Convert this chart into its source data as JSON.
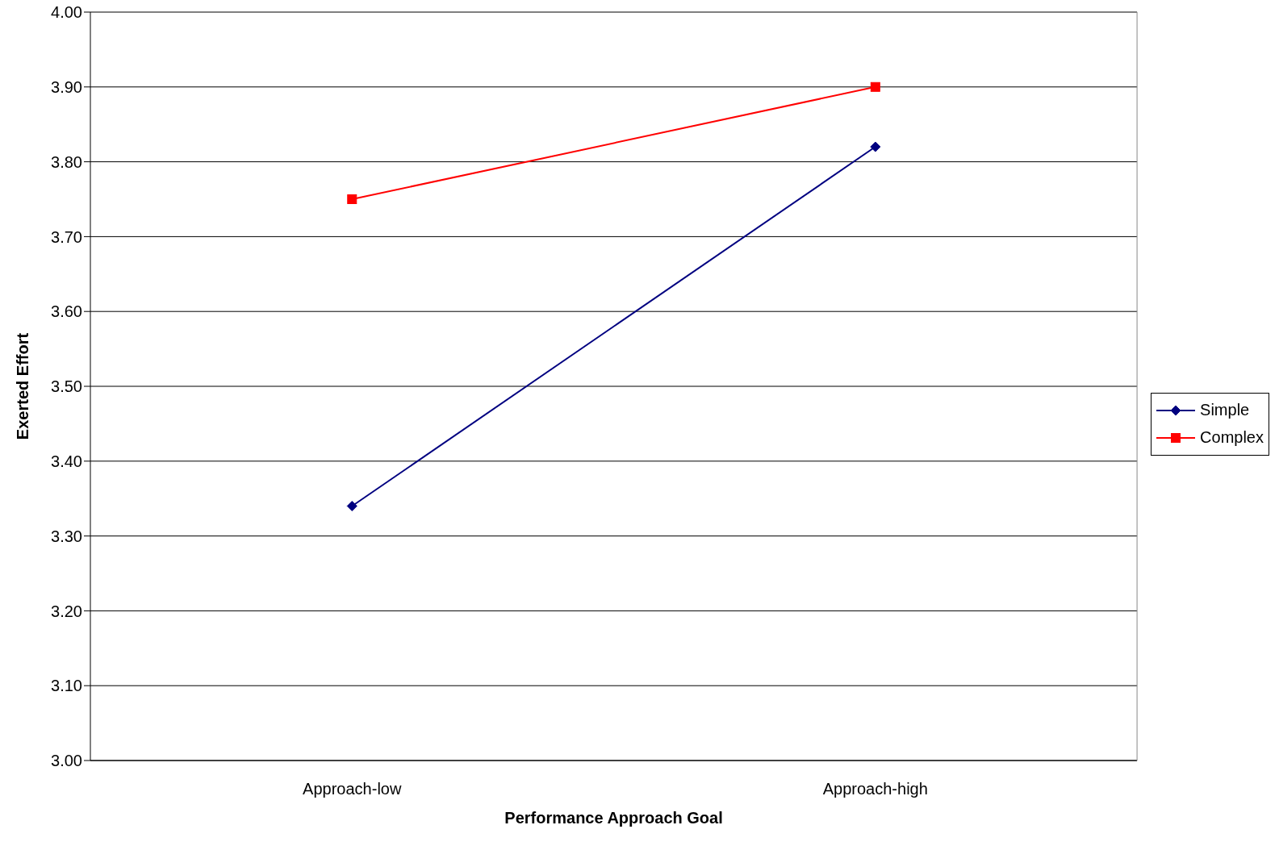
{
  "chart_data": {
    "type": "line",
    "xlabel": "Performance Approach Goal",
    "ylabel": "Exerted Effort",
    "categories": [
      "Approach-low",
      "Approach-high"
    ],
    "series": [
      {
        "name": "Simple",
        "color": "#000080",
        "values": [
          3.34,
          3.82
        ],
        "marker": "diamond"
      },
      {
        "name": "Complex",
        "color": "#ff0000",
        "values": [
          3.75,
          3.9
        ],
        "marker": "square"
      }
    ],
    "ylim": [
      3,
      4
    ],
    "yticks": [
      {
        "value": 3,
        "label": "3.00"
      },
      {
        "value": 3.1,
        "label": "3.10"
      },
      {
        "value": 3.2,
        "label": "3.20"
      },
      {
        "value": 3.3,
        "label": "3.30"
      },
      {
        "value": 3.4,
        "label": "3.40"
      },
      {
        "value": 3.5,
        "label": "3.50"
      },
      {
        "value": 3.6,
        "label": "3.60"
      },
      {
        "value": 3.7,
        "label": "3.70"
      },
      {
        "value": 3.8,
        "label": "3.80"
      },
      {
        "value": 3.9,
        "label": "3.90"
      },
      {
        "value": 4,
        "label": "4.00"
      }
    ],
    "grid": "y",
    "legend": "right",
    "line_style": "solid"
  }
}
